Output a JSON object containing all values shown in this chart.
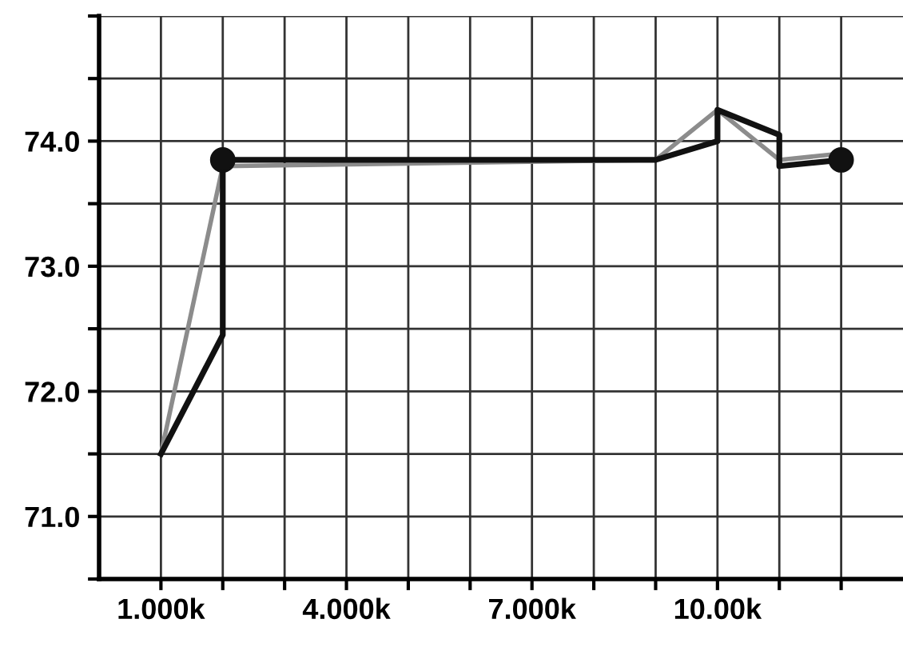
{
  "chart_data": {
    "type": "line",
    "series": [
      {
        "color": "#8c8c8c",
        "x": [
          1000,
          2000,
          9000,
          10000,
          11000,
          12000
        ],
        "values": [
          71.5,
          73.8,
          73.85,
          74.25,
          73.85,
          73.9
        ]
      },
      {
        "color": "#111111",
        "x": [
          1000,
          2000,
          2000,
          9000,
          10000,
          10000,
          11000,
          11000,
          12000
        ],
        "values": [
          71.5,
          72.45,
          73.85,
          73.85,
          74.0,
          74.25,
          74.05,
          73.8,
          73.85
        ]
      },
      {
        "type": "scatter",
        "color": "#111111",
        "marker": "circle",
        "x": [
          2000,
          12000
        ],
        "values": [
          73.85,
          73.85
        ]
      }
    ],
    "xlim": [
      0,
      13000
    ],
    "xticks": [
      {
        "value": 1000,
        "label": "1.000k"
      },
      {
        "value": 2000,
        "label": null
      },
      {
        "value": 3000,
        "label": null
      },
      {
        "value": 4000,
        "label": "4.000k"
      },
      {
        "value": 5000,
        "label": null
      },
      {
        "value": 6000,
        "label": null
      },
      {
        "value": 7000,
        "label": "7.000k"
      },
      {
        "value": 8000,
        "label": null
      },
      {
        "value": 9000,
        "label": null
      },
      {
        "value": 10000,
        "label": "10.00k"
      },
      {
        "value": 11000,
        "label": null
      },
      {
        "value": 12000,
        "label": null
      }
    ],
    "ylim": [
      70.5,
      75.0
    ],
    "yticks": [
      {
        "value": 70.5,
        "label": null
      },
      {
        "value": 71.0,
        "label": "71.0"
      },
      {
        "value": 71.5,
        "label": null
      },
      {
        "value": 72.0,
        "label": "72.0"
      },
      {
        "value": 72.5,
        "label": null
      },
      {
        "value": 73.0,
        "label": "73.0"
      },
      {
        "value": 73.5,
        "label": null
      },
      {
        "value": 74.0,
        "label": "74.0"
      },
      {
        "value": 74.5,
        "label": null
      },
      {
        "value": 75.0,
        "label": null
      }
    ],
    "grid": true,
    "legend": false
  }
}
